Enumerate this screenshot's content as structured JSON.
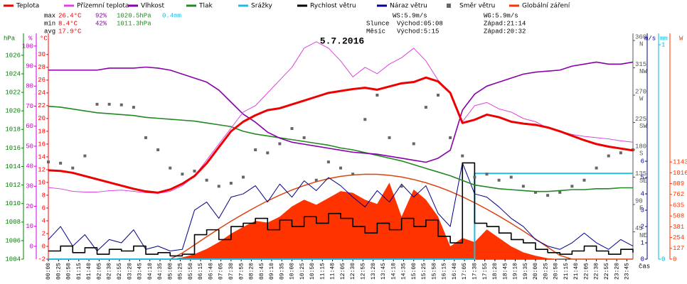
{
  "chart_data": {
    "type": "line",
    "title": "5.7.2016",
    "x_label": "čas",
    "x": [
      0,
      30,
      60,
      90,
      120,
      150,
      180,
      210,
      240,
      270,
      300,
      330,
      360,
      390,
      420,
      450,
      480,
      510,
      540,
      570,
      600,
      630,
      660,
      690,
      720,
      750,
      780,
      810,
      840,
      870,
      900,
      930,
      960,
      990,
      1020,
      1050,
      1080,
      1110,
      1140,
      1170,
      1200,
      1230,
      1260,
      1290,
      1320,
      1350,
      1380,
      1410,
      1440
    ],
    "xlim": [
      0,
      1440
    ],
    "xticks": [
      {
        "value": 0,
        "label": "00:00"
      },
      {
        "value": 25,
        "label": "00:25"
      },
      {
        "value": 50,
        "label": "00:50"
      },
      {
        "value": 75,
        "label": "01:15"
      },
      {
        "value": 100,
        "label": "01:40"
      },
      {
        "value": 125,
        "label": "02:05"
      },
      {
        "value": 150,
        "label": "02:30"
      },
      {
        "value": 175,
        "label": "02:55"
      },
      {
        "value": 200,
        "label": "03:20"
      },
      {
        "value": 225,
        "label": "03:45"
      },
      {
        "value": 250,
        "label": "04:10"
      },
      {
        "value": 275,
        "label": "04:35"
      },
      {
        "value": 300,
        "label": "05:00"
      },
      {
        "value": 325,
        "label": "05:25"
      },
      {
        "value": 350,
        "label": "05:50"
      },
      {
        "value": 375,
        "label": "06:15"
      },
      {
        "value": 400,
        "label": "06:40"
      },
      {
        "value": 425,
        "label": "07:05"
      },
      {
        "value": 450,
        "label": "07:30"
      },
      {
        "value": 475,
        "label": "07:55"
      },
      {
        "value": 500,
        "label": "08:20"
      },
      {
        "value": 525,
        "label": "08:45"
      },
      {
        "value": 550,
        "label": "09:10"
      },
      {
        "value": 575,
        "label": "09:35"
      },
      {
        "value": 600,
        "label": "10:00"
      },
      {
        "value": 625,
        "label": "10:25"
      },
      {
        "value": 650,
        "label": "10:50"
      },
      {
        "value": 675,
        "label": "11:15"
      },
      {
        "value": 700,
        "label": "11:40"
      },
      {
        "value": 725,
        "label": "12:05"
      },
      {
        "value": 750,
        "label": "12:30"
      },
      {
        "value": 775,
        "label": "12:55"
      },
      {
        "value": 800,
        "label": "13:20"
      },
      {
        "value": 825,
        "label": "13:45"
      },
      {
        "value": 850,
        "label": "14:10"
      },
      {
        "value": 875,
        "label": "14:35"
      },
      {
        "value": 900,
        "label": "15:00"
      },
      {
        "value": 925,
        "label": "15:25"
      },
      {
        "value": 950,
        "label": "15:50"
      },
      {
        "value": 975,
        "label": "16:15"
      },
      {
        "value": 1000,
        "label": "16:40"
      },
      {
        "value": 1025,
        "label": "17:05"
      },
      {
        "value": 1050,
        "label": "17:30"
      },
      {
        "value": 1075,
        "label": "17:55"
      },
      {
        "value": 1100,
        "label": "18:20"
      },
      {
        "value": 1125,
        "label": "18:45"
      },
      {
        "value": 1150,
        "label": "19:10"
      },
      {
        "value": 1175,
        "label": "19:35"
      },
      {
        "value": 1200,
        "label": "20:00"
      },
      {
        "value": 1225,
        "label": "20:25"
      },
      {
        "value": 1250,
        "label": "20:50"
      },
      {
        "value": 1275,
        "label": "21:15"
      },
      {
        "value": 1300,
        "label": "21:40"
      },
      {
        "value": 1325,
        "label": "22:05"
      },
      {
        "value": 1350,
        "label": "22:30"
      },
      {
        "value": 1375,
        "label": "22:55"
      },
      {
        "value": 1400,
        "label": "23:20"
      },
      {
        "value": 1425,
        "label": "23:45"
      }
    ],
    "axes": {
      "hpa": {
        "label": "hPa",
        "color": "#008000",
        "lim": [
          1004,
          1027.6
        ],
        "ticks": [
          1004,
          1006,
          1008,
          1010,
          1012,
          1014,
          1016,
          1018,
          1020,
          1022,
          1024,
          1026
        ]
      },
      "pct": {
        "label": "%",
        "color": "#cc00cc",
        "lim": [
          -6.4,
          102.8
        ],
        "ticks": [
          0,
          10,
          20,
          30,
          40,
          50,
          60,
          70,
          80,
          90,
          100
        ]
      },
      "temp": {
        "label": "°C",
        "color": "#ff0000",
        "lim": [
          -2,
          32.2
        ],
        "ticks": [
          -2,
          0,
          2,
          4,
          6,
          8,
          10,
          12,
          14,
          16,
          18,
          20,
          22,
          24,
          26,
          28,
          30
        ]
      },
      "dir": {
        "color": "#555555",
        "lim": [
          0,
          360
        ],
        "ticks": [
          45,
          90,
          135,
          180,
          225,
          270,
          315,
          360
        ],
        "tick_names": [
          "NE",
          "E",
          "SE",
          "S",
          "SW",
          "W",
          "NW",
          "N"
        ]
      },
      "ms": {
        "label": "m/s",
        "color": "#000080",
        "lim": [
          0,
          13.4
        ],
        "ticks": [
          0,
          1,
          2,
          3,
          4,
          5,
          6
        ]
      },
      "mm": {
        "label": "mm",
        "color": "#00bbdd",
        "lim": [
          0,
          1.02
        ],
        "ticks": [
          0,
          1
        ]
      },
      "w": {
        "label": "W",
        "color": "#ff3300",
        "lim": [
          0,
          2573
        ],
        "ticks": [
          0,
          127,
          254,
          381,
          508,
          635,
          762,
          889,
          1016,
          1143
        ]
      }
    },
    "series": [
      {
        "name": "Teplota",
        "color": "#ee0000",
        "axis": "temp",
        "style": "line",
        "width": 3,
        "values": [
          11.9,
          11.8,
          11.5,
          11.0,
          10.5,
          10.0,
          9.5,
          9.0,
          8.6,
          8.4,
          8.9,
          9.8,
          11.0,
          13.0,
          15.5,
          18.0,
          19.5,
          20.5,
          21.3,
          21.6,
          22.2,
          22.8,
          23.4,
          24.0,
          24.3,
          24.6,
          24.8,
          24.5,
          25.0,
          25.5,
          25.7,
          26.4,
          25.8,
          24.0,
          19.3,
          19.8,
          20.6,
          20.2,
          19.5,
          19.2,
          19.0,
          18.6,
          18.0,
          17.3,
          16.6,
          16.0,
          15.6,
          15.3,
          15.0
        ]
      },
      {
        "name": "Přízemní teplota",
        "color": "#dd44dd",
        "axis": "temp",
        "style": "line",
        "width": 1,
        "values": [
          9.2,
          9.0,
          8.6,
          8.5,
          8.5,
          8.7,
          8.8,
          8.6,
          8.4,
          8.3,
          8.6,
          9.5,
          11,
          13.5,
          16,
          18.5,
          21,
          22,
          24,
          26,
          28,
          31,
          32,
          31,
          29,
          26.5,
          28,
          27,
          28.5,
          29.5,
          31,
          29,
          26,
          24,
          19.5,
          22,
          22.5,
          21.5,
          21,
          20,
          19.5,
          18.5,
          18,
          17.5,
          17.2,
          17,
          16.8,
          16.5,
          16.3
        ]
      },
      {
        "name": "Vlhkost",
        "color": "#8800aa",
        "axis": "pct",
        "style": "line",
        "width": 1.6,
        "values": [
          88,
          88,
          88,
          88,
          88,
          89,
          89,
          89,
          89.5,
          89,
          88,
          86,
          84,
          82,
          78,
          72,
          66,
          62,
          57,
          54,
          52,
          51,
          50,
          49,
          48,
          47,
          46.5,
          46,
          45,
          44,
          43,
          42,
          44,
          48,
          68,
          76,
          80,
          82,
          84,
          86,
          87,
          87.5,
          88,
          90,
          91,
          92,
          91,
          91,
          92
        ]
      },
      {
        "name": "Tlak",
        "color": "#228822",
        "axis": "hpa",
        "style": "line",
        "width": 1.6,
        "values": [
          1020.5,
          1020.4,
          1020.2,
          1020.0,
          1019.8,
          1019.7,
          1019.6,
          1019.5,
          1019.3,
          1019.2,
          1019.1,
          1019.0,
          1018.9,
          1018.7,
          1018.5,
          1018.3,
          1017.8,
          1017.5,
          1017.3,
          1017.1,
          1016.9,
          1016.7,
          1016.5,
          1016.3,
          1016.0,
          1015.8,
          1015.5,
          1015.2,
          1014.9,
          1014.6,
          1014.2,
          1013.8,
          1013.4,
          1013.0,
          1012.5,
          1012.0,
          1011.8,
          1011.6,
          1011.5,
          1011.4,
          1011.3,
          1011.3,
          1011.4,
          1011.5,
          1011.5,
          1011.6,
          1011.6,
          1011.7,
          1011.7
        ]
      },
      {
        "name": "Srážky",
        "color": "#22bbdd",
        "axis": "mm",
        "style": "step",
        "width": 2,
        "values": [
          0,
          0,
          0,
          0,
          0,
          0,
          0,
          0,
          0,
          0,
          0,
          0,
          0,
          0,
          0,
          0,
          0,
          0,
          0,
          0,
          0,
          0,
          0,
          0,
          0,
          0,
          0,
          0,
          0,
          0,
          0,
          0,
          0,
          0,
          0,
          0.4,
          0.4,
          0.4,
          0.4,
          0.4,
          0.4,
          0.4,
          0.4,
          0.4,
          0.4,
          0.4,
          0.4,
          0.4,
          0.4
        ]
      },
      {
        "name": "Rychlost větru",
        "color": "#000000",
        "axis": "ms",
        "style": "step",
        "width": 1.6,
        "values": [
          0.5,
          0.8,
          0.4,
          0.7,
          0.3,
          0.6,
          0.5,
          0.8,
          0.3,
          0.4,
          0.2,
          0.3,
          1.5,
          1.8,
          1.2,
          2.0,
          2.2,
          2.5,
          1.8,
          2.4,
          2.0,
          2.6,
          2.2,
          2.8,
          2.5,
          2.0,
          1.6,
          2.2,
          1.8,
          2.5,
          2.0,
          2.4,
          1.4,
          1.0,
          5.9,
          2.2,
          2.0,
          1.6,
          1.2,
          1.0,
          0.6,
          0.4,
          0.3,
          0.5,
          0.8,
          0.5,
          0.3,
          0.6,
          0.4
        ]
      },
      {
        "name": "Náraz větru",
        "color": "#000088",
        "axis": "ms",
        "style": "line",
        "width": 1,
        "values": [
          1.2,
          2.0,
          0.8,
          1.5,
          0.5,
          1.2,
          1.0,
          1.8,
          0.6,
          0.8,
          0.5,
          0.6,
          3.0,
          3.5,
          2.5,
          3.8,
          4.0,
          4.5,
          3.5,
          4.6,
          3.8,
          4.8,
          4.2,
          5.0,
          4.5,
          3.8,
          3.2,
          4.2,
          3.5,
          4.6,
          3.8,
          4.5,
          2.8,
          2.0,
          5.9,
          4.0,
          3.8,
          3.2,
          2.5,
          2.0,
          1.2,
          0.8,
          0.6,
          1.0,
          1.6,
          1.0,
          0.6,
          1.2,
          0.8
        ]
      },
      {
        "name": "Směr větru",
        "color": "#666666",
        "axis": "dir",
        "style": "points",
        "values": [
          160,
          158,
          150,
          170,
          255,
          255,
          254,
          250,
          200,
          180,
          150,
          140,
          145,
          130,
          120,
          125,
          135,
          180,
          175,
          190,
          215,
          200,
          130,
          160,
          150,
          140,
          230,
          270,
          200,
          120,
          190,
          250,
          270,
          200,
          170,
          135,
          140,
          130,
          135,
          120,
          110,
          105,
          110,
          120,
          130,
          150,
          170,
          175,
          180
        ]
      },
      {
        "name": "Globální záření",
        "color": "#ff3300",
        "axis": "w",
        "style": "area",
        "values": [
          0,
          0,
          0,
          0,
          0,
          0,
          0,
          0,
          0,
          0,
          0,
          20,
          60,
          120,
          200,
          300,
          380,
          450,
          430,
          500,
          620,
          700,
          640,
          720,
          800,
          780,
          700,
          650,
          900,
          500,
          820,
          700,
          500,
          150,
          250,
          200,
          350,
          250,
          150,
          80,
          40,
          10,
          0,
          0,
          0,
          0,
          0,
          0,
          0
        ],
        "max_values": [
          0,
          0,
          0,
          0,
          0,
          0,
          0,
          0,
          0,
          0,
          0,
          72,
          168,
          264,
          357,
          447,
          531,
          611,
          686,
          753,
          814,
          866,
          911,
          947,
          974,
          991,
          999,
          998,
          987,
          967,
          937,
          899,
          852,
          797,
          734,
          664,
          588,
          507,
          421,
          331,
          237,
          141,
          44,
          0,
          0,
          0,
          0,
          0,
          0
        ],
        "max_color": "#dd4411"
      }
    ]
  },
  "stats": {
    "rows": [
      {
        "label": "max",
        "items": [
          "26.4°C",
          "92%",
          "1020.5hPa",
          "0.4mm"
        ]
      },
      {
        "label": "min",
        "items": [
          "8.4°C",
          "42%",
          "1011.3hPa"
        ]
      },
      {
        "label": "avg",
        "items": [
          "17.9°C"
        ]
      }
    ],
    "item_colors": [
      "#ee0000",
      "#8800aa",
      "#228822",
      "#22bbdd"
    ]
  },
  "info": {
    "ws": "WS:5.9m/s",
    "wg": "WG:5.9m/s",
    "sun": {
      "label": "Slunce",
      "rise": "Východ:05:08",
      "set": "Západ:21:14"
    },
    "moon": {
      "label": "Měsíc",
      "rise": "Východ:5:15",
      "set": "Západ:20:32"
    }
  }
}
